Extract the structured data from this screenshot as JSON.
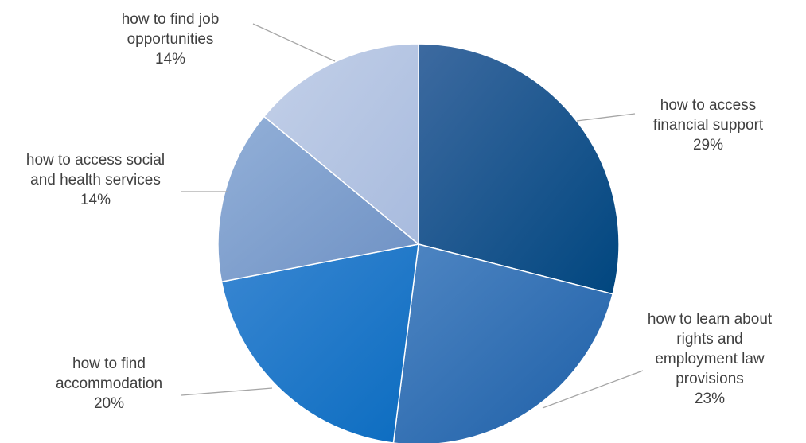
{
  "chart_data": {
    "type": "pie",
    "title": "",
    "start_angle_deg": 0,
    "direction": "clockwise",
    "legend": "none",
    "slices": [
      {
        "label_lines": [
          "how to access",
          "financial support"
        ],
        "value": 29,
        "value_label": "29%",
        "color_from": "#3d6aa0",
        "color_to": "#00467f"
      },
      {
        "label_lines": [
          "how to learn about",
          "rights and",
          "employment law",
          "provisions"
        ],
        "value": 23,
        "value_label": "23%",
        "color_from": "#4f86c3",
        "color_to": "#1d5fa7"
      },
      {
        "label_lines": [
          "how to find",
          "accommodation"
        ],
        "value": 20,
        "value_label": "20%",
        "color_from": "#3a87d2",
        "color_to": "#0b6cc0"
      },
      {
        "label_lines": [
          "how to access social",
          "and health services"
        ],
        "value": 14,
        "value_label": "14%",
        "color_from": "#93b0d8",
        "color_to": "#6e91c4"
      },
      {
        "label_lines": [
          "how to find job",
          "opportunities"
        ],
        "value": 14,
        "value_label": "14%",
        "color_from": "#c3d0e8",
        "color_to": "#a8bbde"
      }
    ]
  }
}
